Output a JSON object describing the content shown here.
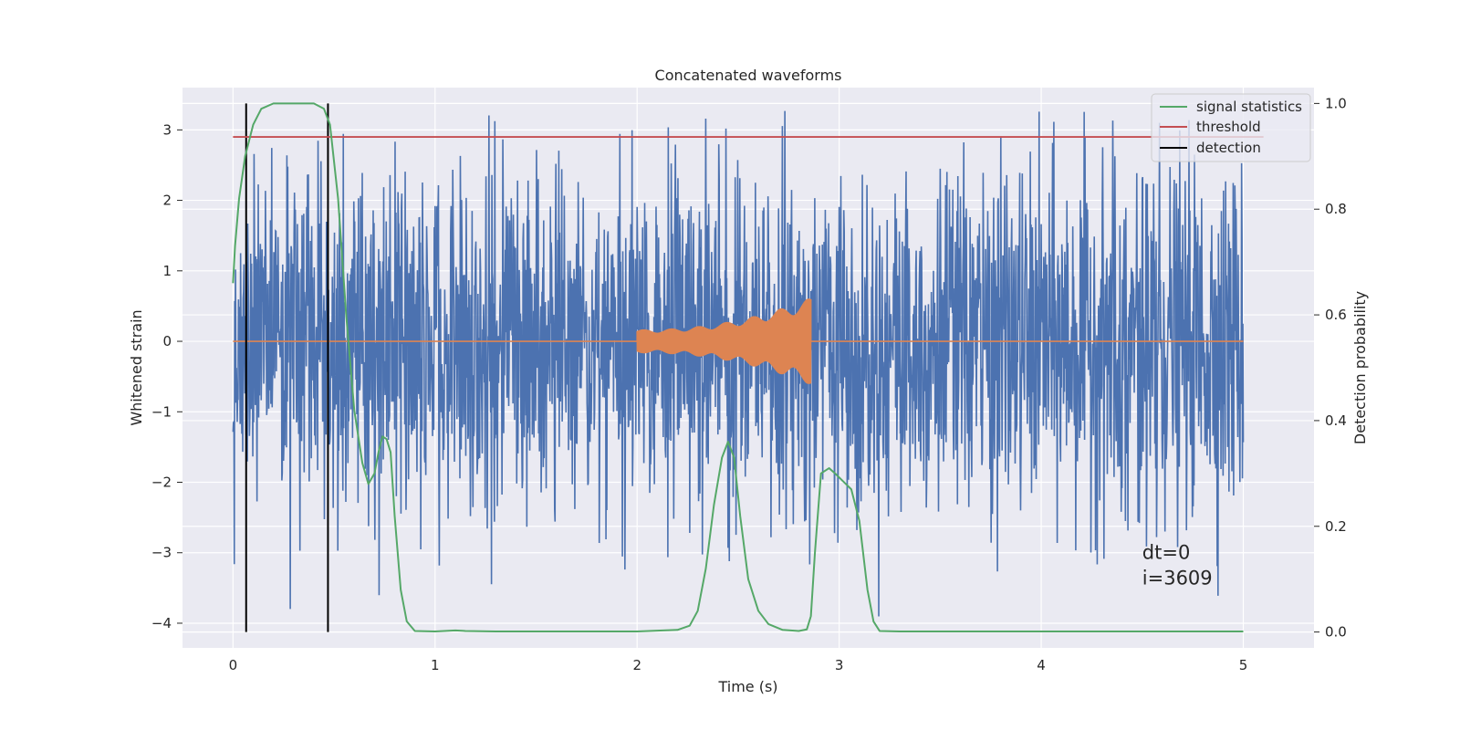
{
  "chart_data": {
    "type": "line",
    "title": "Concatenated waveforms",
    "xlabel": "Time (s)",
    "ylabel": "Whitened strain",
    "y2label": "Detection probability",
    "xlim": [
      -0.25,
      5.35
    ],
    "ylim": [
      -4.35,
      3.6
    ],
    "y2lim": [
      -0.03,
      1.03
    ],
    "xticks": [
      0,
      1,
      2,
      3,
      4,
      5
    ],
    "yticks": [
      3,
      2,
      1,
      0,
      -1,
      -2,
      -3,
      -4
    ],
    "yticklabels": [
      "3",
      "2",
      "1",
      "0",
      "−1",
      "−2",
      "−3",
      "−4"
    ],
    "y2ticks": [
      1.0,
      0.8,
      0.6,
      0.4,
      0.2,
      0.0
    ],
    "y2ticklabels": [
      "1.0",
      "0.8",
      "0.6",
      "0.4",
      "0.2",
      "0.0"
    ],
    "grid": true,
    "legend_position": "top-right",
    "colors": {
      "background": "#eaeaf2",
      "grid": "#ffffff",
      "strain": "#4c72b0",
      "injection": "#dd8452",
      "statistics": "#55a868",
      "threshold": "#c44e52",
      "detection": "#000000"
    },
    "series": [
      {
        "name": "",
        "axis": "left",
        "kind": "noise",
        "x_range": [
          0,
          5
        ],
        "typical_amplitude": 1.2,
        "peak_range": [
          -4.0,
          3.3
        ]
      },
      {
        "name": "",
        "axis": "left",
        "kind": "chirp",
        "x_range": [
          2.0,
          2.86
        ],
        "amplitude_start": 0.17,
        "amplitude_end": 0.62
      },
      {
        "name": "signal statistics",
        "axis": "right",
        "x": [
          0.0,
          0.01,
          0.03,
          0.06,
          0.1,
          0.14,
          0.2,
          0.3,
          0.4,
          0.45,
          0.48,
          0.52,
          0.56,
          0.6,
          0.64,
          0.67,
          0.7,
          0.72,
          0.74,
          0.76,
          0.78,
          0.8,
          0.83,
          0.86,
          0.9,
          1.0,
          1.1,
          1.15,
          1.3,
          2.0,
          2.2,
          2.26,
          2.3,
          2.34,
          2.38,
          2.42,
          2.45,
          2.48,
          2.51,
          2.55,
          2.6,
          2.65,
          2.72,
          2.8,
          2.84,
          2.86,
          2.88,
          2.91,
          2.95,
          2.98,
          3.02,
          3.06,
          3.1,
          3.14,
          3.17,
          3.2,
          3.3,
          5.0
        ],
        "y": [
          0.66,
          0.73,
          0.82,
          0.9,
          0.96,
          0.99,
          1.0,
          1.0,
          1.0,
          0.99,
          0.96,
          0.82,
          0.6,
          0.42,
          0.32,
          0.28,
          0.3,
          0.34,
          0.37,
          0.365,
          0.34,
          0.22,
          0.08,
          0.02,
          0.002,
          0.001,
          0.003,
          0.002,
          0.001,
          0.001,
          0.004,
          0.012,
          0.04,
          0.12,
          0.24,
          0.33,
          0.36,
          0.33,
          0.22,
          0.1,
          0.04,
          0.015,
          0.004,
          0.002,
          0.005,
          0.03,
          0.15,
          0.3,
          0.31,
          0.3,
          0.285,
          0.27,
          0.21,
          0.08,
          0.02,
          0.002,
          0.001,
          0.001
        ]
      },
      {
        "name": "threshold",
        "axis": "left",
        "x": [
          0,
          5.1
        ],
        "y": [
          2.9,
          2.9
        ]
      },
      {
        "name": "detection",
        "axis": "right",
        "kind": "vlines",
        "x": [
          0.065,
          0.47
        ],
        "y_range": [
          0.0,
          1.0
        ]
      }
    ],
    "annotations": [
      "dt=0",
      "i=3609"
    ],
    "annotation_position": [
      4.5,
      -3.45
    ]
  }
}
